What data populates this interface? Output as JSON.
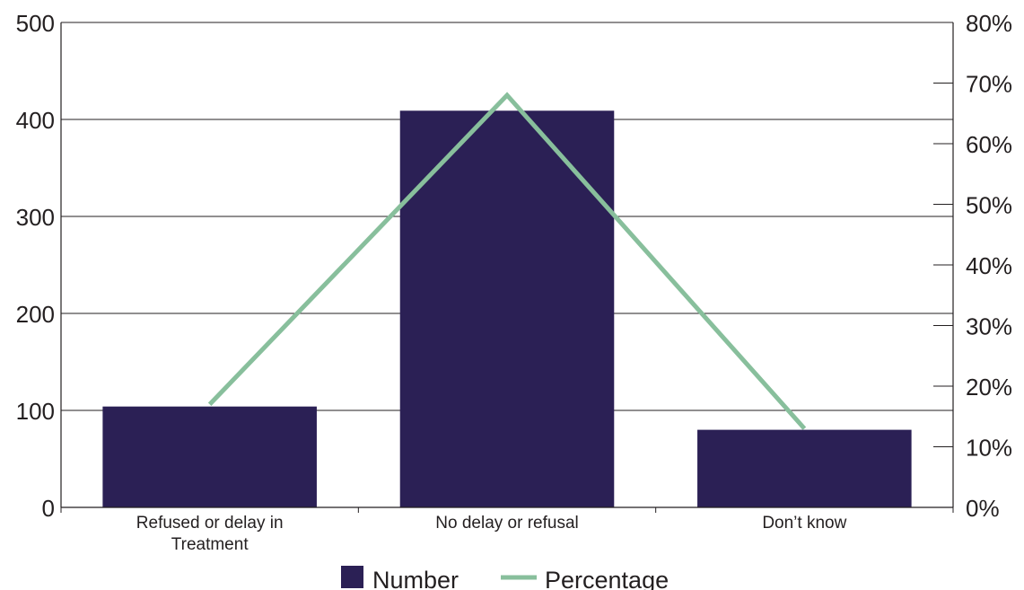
{
  "chart_data": {
    "type": "bar",
    "categories": [
      [
        "Refused or delay in",
        "Treatment"
      ],
      [
        "No delay or refusal"
      ],
      [
        "Don’t know"
      ]
    ],
    "series": [
      {
        "name": "Number",
        "kind": "bar",
        "axis": "left",
        "values": [
          104,
          409,
          80
        ]
      },
      {
        "name": "Percentage",
        "kind": "line",
        "axis": "right",
        "values": [
          17,
          68,
          13
        ]
      }
    ],
    "y_left": {
      "ylim": [
        0,
        500
      ],
      "ticks": [
        "0",
        "100",
        "200",
        "300",
        "400",
        "500"
      ]
    },
    "y_right": {
      "ylim": [
        0,
        80
      ],
      "ticks": [
        "0%",
        "10%",
        "20%",
        "30%",
        "40%",
        "50%",
        "60%",
        "70%",
        "80%"
      ]
    },
    "grid": true,
    "legend_position": "bottom",
    "colors": {
      "bar": "#2b2055",
      "line": "#88bf9c",
      "axis": "#231f20",
      "grid": "#231f20"
    }
  },
  "legend": {
    "number_label": "Number",
    "percentage_label": "Percentage"
  }
}
